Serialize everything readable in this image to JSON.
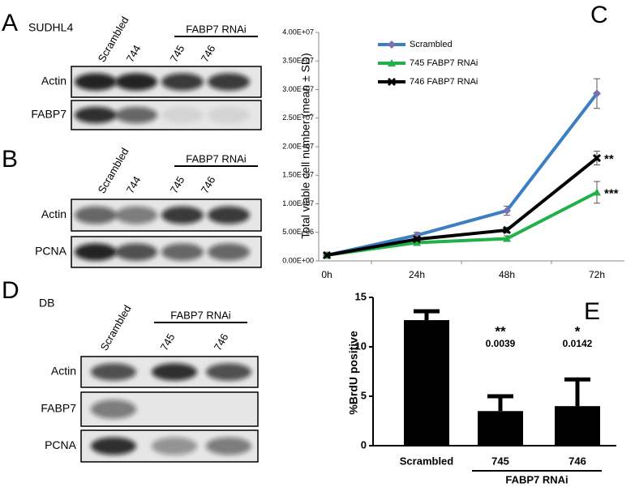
{
  "panels": {
    "A": {
      "letter": "A",
      "cell_line": "SUDHL4",
      "lanes": [
        "Scrambled",
        "744",
        "745",
        "746"
      ],
      "group_label": "FABP7 RNAi",
      "rows": [
        "Actin",
        "FABP7"
      ]
    },
    "B": {
      "letter": "B",
      "lanes": [
        "Scrambled",
        "744",
        "745",
        "746"
      ],
      "group_label": "FABP7 RNAi",
      "rows": [
        "Actin",
        "PCNA"
      ]
    },
    "D": {
      "letter": "D",
      "cell_line": "DB",
      "lanes": [
        "Scrambled",
        "745",
        "746"
      ],
      "group_label": "FABP7 RNAi",
      "rows": [
        "Actin",
        "FABP7",
        "PCNA"
      ]
    }
  },
  "chart_data": [
    {
      "type": "line",
      "panel_letter": "C",
      "ylabel": "Total viable cell number (mean ± SD)",
      "categories": [
        "0h",
        "24h",
        "48h",
        "72h"
      ],
      "ylim": [
        0,
        40000000
      ],
      "yticks": [
        {
          "value": 0,
          "label": "0.00E+00"
        },
        {
          "value": 5000000,
          "label": "5.00E+06"
        },
        {
          "value": 10000000,
          "label": "1.00E+07"
        },
        {
          "value": 15000000,
          "label": "1.50E+07"
        },
        {
          "value": 20000000,
          "label": "2.00E+07"
        },
        {
          "value": 25000000,
          "label": "2.50E+07"
        },
        {
          "value": 30000000,
          "label": "3.00E+07"
        },
        {
          "value": 35000000,
          "label": "3.50E+07"
        },
        {
          "value": 40000000,
          "label": "4.00E+07"
        }
      ],
      "series": [
        {
          "name": "Scrambled",
          "color": "#3a7fc4",
          "marker": "diamond",
          "values": [
            1000000,
            4500000,
            8800000,
            29300000
          ],
          "errors": [
            200000,
            500000,
            800000,
            2600000
          ]
        },
        {
          "name": "745 FABP7 RNAi",
          "color": "#22b04b",
          "marker": "triangle",
          "values": [
            1000000,
            3200000,
            3900000,
            12000000
          ],
          "errors": [
            200000,
            400000,
            500000,
            1900000
          ],
          "significance": "***"
        },
        {
          "name": "746 FABP7 RNAi",
          "color": "#000000",
          "marker": "x",
          "values": [
            1000000,
            3800000,
            5400000,
            18000000
          ],
          "errors": [
            200000,
            400000,
            500000,
            1200000
          ],
          "significance": "**"
        }
      ]
    },
    {
      "type": "bar",
      "panel_letter": "E",
      "ylabel": "%BrdU positive",
      "color": "#000000",
      "categories": [
        "Scrambled",
        "745",
        "746"
      ],
      "values": [
        12.7,
        3.5,
        4.0
      ],
      "errors": [
        0.9,
        1.5,
        2.7
      ],
      "stars": [
        null,
        "**",
        "*"
      ],
      "p_values": [
        null,
        "0.0039",
        "0.0142"
      ],
      "group_label": "FABP7 RNAi",
      "ylim": [
        0,
        15
      ],
      "yticks": [
        0,
        5,
        10,
        15
      ]
    }
  ]
}
